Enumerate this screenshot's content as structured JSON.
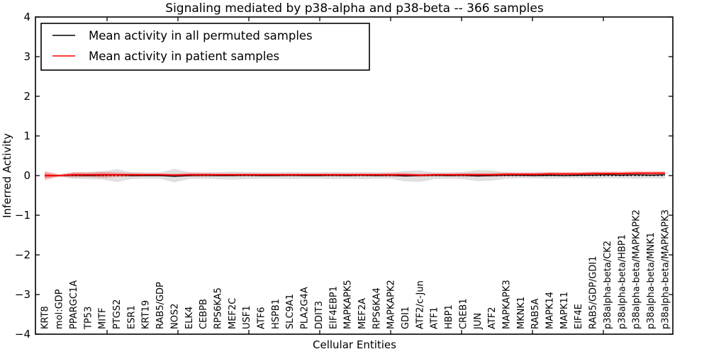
{
  "title": "Signaling mediated by p38-alpha and p38-beta -- 366 samples",
  "axes": {
    "xlabel": "Cellular Entities",
    "ylabel": "Inferred Activity",
    "ylim": [
      -4,
      4
    ],
    "yticks": [
      4,
      3,
      2,
      1,
      0,
      -1,
      -2,
      -3,
      -4
    ]
  },
  "legend": {
    "entries": [
      {
        "label": "Mean activity in all permuted samples",
        "color": "#000000"
      },
      {
        "label": "Mean activity in patient samples",
        "color": "#ff0000"
      }
    ]
  },
  "chart_data": {
    "type": "line",
    "title": "Signaling mediated by p38-alpha and p38-beta -- 366 samples",
    "xlabel": "Cellular Entities",
    "ylabel": "Inferred Activity",
    "ylim": [
      -4,
      4
    ],
    "grid": false,
    "legend_position": "upper left",
    "zero_reference_line": 0,
    "categories": [
      "KRT8",
      "mol:GDP",
      "PPARGC1A",
      "TP53",
      "MITF",
      "PTGS2",
      "ESR1",
      "KRT19",
      "RAB5/GDP",
      "NOS2",
      "ELK4",
      "CEBPB",
      "RPS6KA5",
      "MEF2C",
      "USF1",
      "ATF6",
      "HSPB1",
      "SLC9A1",
      "PLA2G4A",
      "DDIT3",
      "EIF4EBP1",
      "MAPKAPK5",
      "MEF2A",
      "RPS6KA4",
      "MAPKAPK2",
      "GDI1",
      "ATF2/c-Jun",
      "ATF1",
      "HBP1",
      "CREB1",
      "JUN",
      "ATF2",
      "MAPKAPK3",
      "MKNK1",
      "RAB5A",
      "MAPK14",
      "MAPK11",
      "EIF4E",
      "RAB5/GDP/GDI1",
      "p38alpha-beta/CK2",
      "p38alpha-beta/HBP1",
      "p38alpha-beta/MAPKAPK2",
      "p38alpha-beta/MNK1",
      "p38alpha-beta/MAPKAPK3"
    ],
    "series": [
      {
        "name": "Mean activity in all permuted samples",
        "color": "#000000",
        "line_width": 1.3,
        "values": [
          0.0,
          0.0,
          0.01,
          0.0,
          0.01,
          0.02,
          0.0,
          0.0,
          0.0,
          -0.02,
          0.0,
          0.01,
          0.0,
          0.0,
          0.01,
          0.0,
          0.0,
          0.01,
          0.0,
          0.0,
          0.01,
          0.0,
          0.01,
          0.0,
          0.01,
          -0.01,
          0.0,
          0.01,
          0.0,
          0.01,
          -0.01,
          0.0,
          0.01,
          0.01,
          0.0,
          0.01,
          0.0,
          0.01,
          0.01,
          0.02,
          0.01,
          0.02,
          0.01,
          0.02
        ]
      },
      {
        "name": "Mean activity in patient samples",
        "color": "#ff0000",
        "line_width": 1.8,
        "values": [
          0.0,
          0.0,
          0.02,
          0.02,
          0.02,
          0.02,
          0.02,
          0.02,
          0.02,
          0.01,
          0.02,
          0.02,
          0.02,
          0.02,
          0.02,
          0.02,
          0.02,
          0.02,
          0.02,
          0.02,
          0.02,
          0.02,
          0.02,
          0.02,
          0.02,
          0.02,
          0.01,
          0.02,
          0.02,
          0.02,
          0.02,
          0.02,
          0.03,
          0.03,
          0.03,
          0.04,
          0.04,
          0.04,
          0.05,
          0.05,
          0.05,
          0.06,
          0.06,
          0.06
        ]
      }
    ],
    "bands": [
      {
        "name": "permuted-samples-range",
        "fill": "#bbbbbb",
        "opacity": 0.45,
        "upper": [
          0.06,
          0.03,
          0.08,
          0.09,
          0.1,
          0.16,
          0.09,
          0.08,
          0.08,
          0.17,
          0.09,
          0.08,
          0.09,
          0.1,
          0.09,
          0.08,
          0.08,
          0.09,
          0.08,
          0.08,
          0.09,
          0.08,
          0.09,
          0.08,
          0.08,
          0.12,
          0.13,
          0.08,
          0.08,
          0.09,
          0.14,
          0.13,
          0.08,
          0.07,
          0.07,
          0.08,
          0.07,
          0.07,
          0.08,
          0.07,
          0.07,
          0.08,
          0.07,
          0.08
        ],
        "lower": [
          -0.06,
          -0.03,
          -0.08,
          -0.09,
          -0.1,
          -0.16,
          -0.09,
          -0.08,
          -0.08,
          -0.17,
          -0.09,
          -0.08,
          -0.09,
          -0.1,
          -0.09,
          -0.08,
          -0.08,
          -0.09,
          -0.08,
          -0.08,
          -0.09,
          -0.08,
          -0.09,
          -0.08,
          -0.08,
          -0.15,
          -0.16,
          -0.09,
          -0.08,
          -0.09,
          -0.14,
          -0.13,
          -0.08,
          -0.07,
          -0.07,
          -0.08,
          -0.07,
          -0.07,
          -0.08,
          -0.07,
          -0.07,
          -0.08,
          -0.07,
          -0.08
        ]
      },
      {
        "name": "patient-samples-range",
        "fill": "#ff0000",
        "opacity": 0.22,
        "upper": [
          0.12,
          0.03,
          0.09,
          0.08,
          0.1,
          0.08,
          0.07,
          0.06,
          0.06,
          0.05,
          0.07,
          0.07,
          0.06,
          0.06,
          0.06,
          0.06,
          0.06,
          0.06,
          0.06,
          0.06,
          0.06,
          0.06,
          0.06,
          0.06,
          0.07,
          0.07,
          0.05,
          0.06,
          0.06,
          0.07,
          0.07,
          0.07,
          0.08,
          0.08,
          0.08,
          0.09,
          0.09,
          0.09,
          0.1,
          0.1,
          0.1,
          0.11,
          0.11,
          0.11
        ],
        "lower": [
          -0.12,
          -0.03,
          -0.05,
          -0.04,
          -0.06,
          -0.04,
          -0.03,
          -0.02,
          -0.02,
          -0.03,
          -0.03,
          -0.03,
          -0.02,
          -0.02,
          -0.02,
          -0.02,
          -0.02,
          -0.02,
          -0.02,
          -0.02,
          -0.02,
          -0.02,
          -0.02,
          -0.02,
          -0.03,
          -0.03,
          -0.03,
          -0.02,
          -0.02,
          -0.03,
          -0.03,
          -0.03,
          -0.02,
          -0.02,
          -0.02,
          -0.01,
          -0.01,
          -0.01,
          0.0,
          0.0,
          0.0,
          0.01,
          0.01,
          0.01
        ]
      }
    ]
  }
}
